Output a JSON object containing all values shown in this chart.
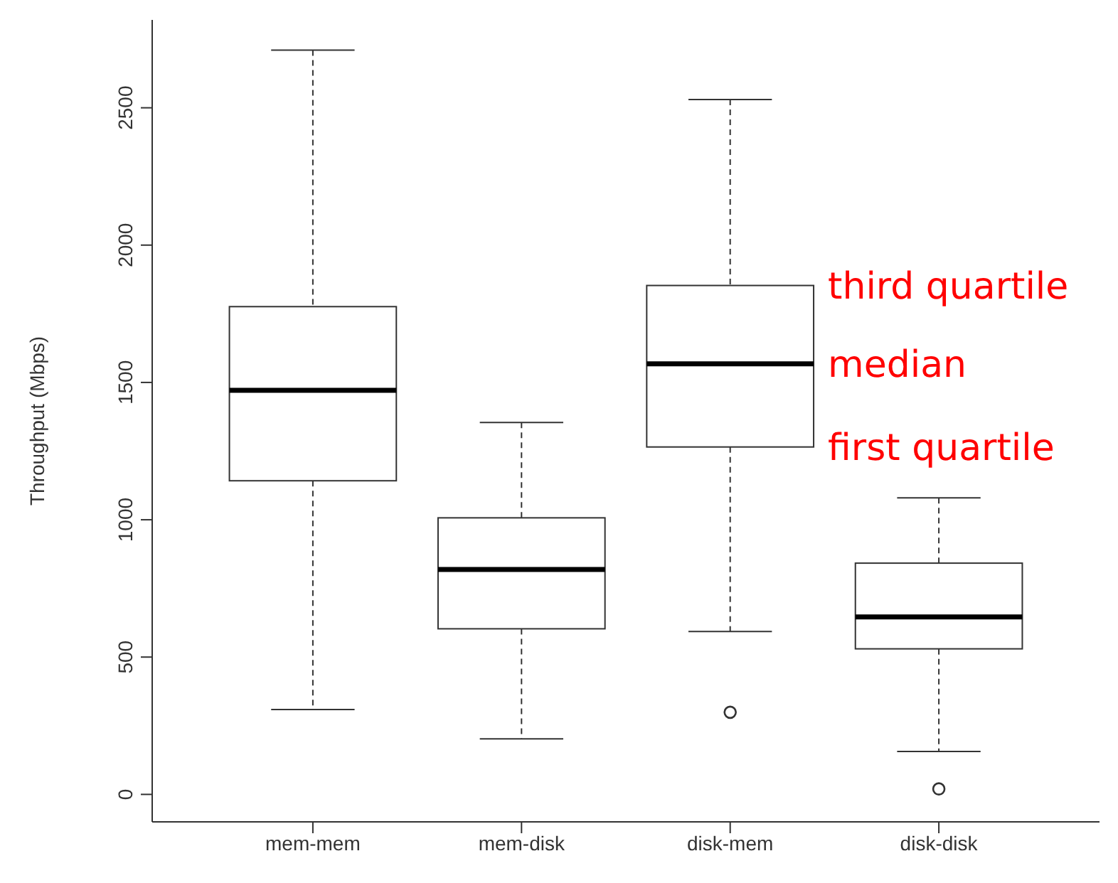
{
  "chart_data": {
    "type": "box",
    "ylabel": "Throughput (Mbps)",
    "categories": [
      "mem-mem",
      "mem-disk",
      "disk-mem",
      "disk-disk"
    ],
    "boxes": [
      {
        "low": 309,
        "q1": 1142,
        "median": 1471,
        "q3": 1776,
        "high": 2710
      },
      {
        "low": 202,
        "q1": 603,
        "median": 819,
        "q3": 1007,
        "high": 1354
      },
      {
        "low": 593,
        "q1": 1265,
        "median": 1568,
        "q3": 1853,
        "high": 2530,
        "outliers": [
          299
        ]
      },
      {
        "low": 156,
        "q1": 530,
        "median": 646,
        "q3": 842,
        "high": 1080,
        "outliers": [
          20
        ]
      }
    ],
    "ylim": [
      -100,
      2820
    ],
    "yticks": [
      0,
      500,
      1000,
      1500,
      2000,
      2500
    ],
    "grid": false,
    "annotations": [
      {
        "text": "third quartile",
        "x": "disk-mem",
        "y": 1853
      },
      {
        "text": "median",
        "x": "disk-mem",
        "y": 1568
      },
      {
        "text": "first quartile",
        "x": "disk-mem",
        "y": 1265
      }
    ]
  }
}
